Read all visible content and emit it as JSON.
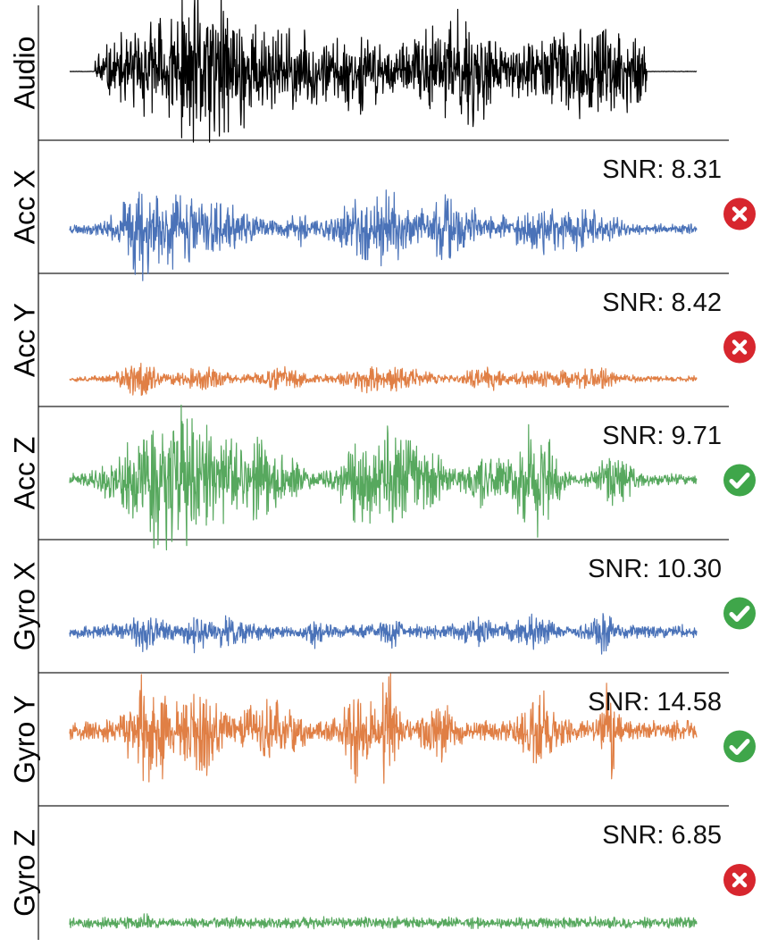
{
  "chart_data": [
    {
      "type": "line",
      "label": "Audio",
      "snr_text": "",
      "status": "",
      "color": "#000000",
      "seed": 11
    },
    {
      "type": "line",
      "label": "Acc X",
      "snr_text": "SNR: 8.31",
      "status": "fail",
      "color": "#4a72b8",
      "seed": 23
    },
    {
      "type": "line",
      "label": "Acc Y",
      "snr_text": "SNR: 8.42",
      "status": "fail",
      "color": "#e07f45",
      "seed": 37
    },
    {
      "type": "line",
      "label": "Acc Z",
      "snr_text": "SNR: 9.71",
      "status": "pass",
      "color": "#57a85e",
      "seed": 41
    },
    {
      "type": "line",
      "label": "Gyro X",
      "snr_text": "SNR: 10.30",
      "status": "pass",
      "color": "#4a72b8",
      "seed": 53
    },
    {
      "type": "line",
      "label": "Gyro Y",
      "snr_text": "SNR: 14.58",
      "status": "pass",
      "color": "#e07f45",
      "seed": 67
    },
    {
      "type": "line",
      "label": "Gyro Z",
      "snr_text": "SNR: 6.85",
      "status": "fail",
      "color": "#57a85e",
      "seed": 79
    }
  ],
  "status_colors": {
    "pass": "#3fa64a",
    "fail": "#d7262e"
  },
  "icons": {
    "pass": "check-circle-icon",
    "fail": "x-circle-icon"
  }
}
